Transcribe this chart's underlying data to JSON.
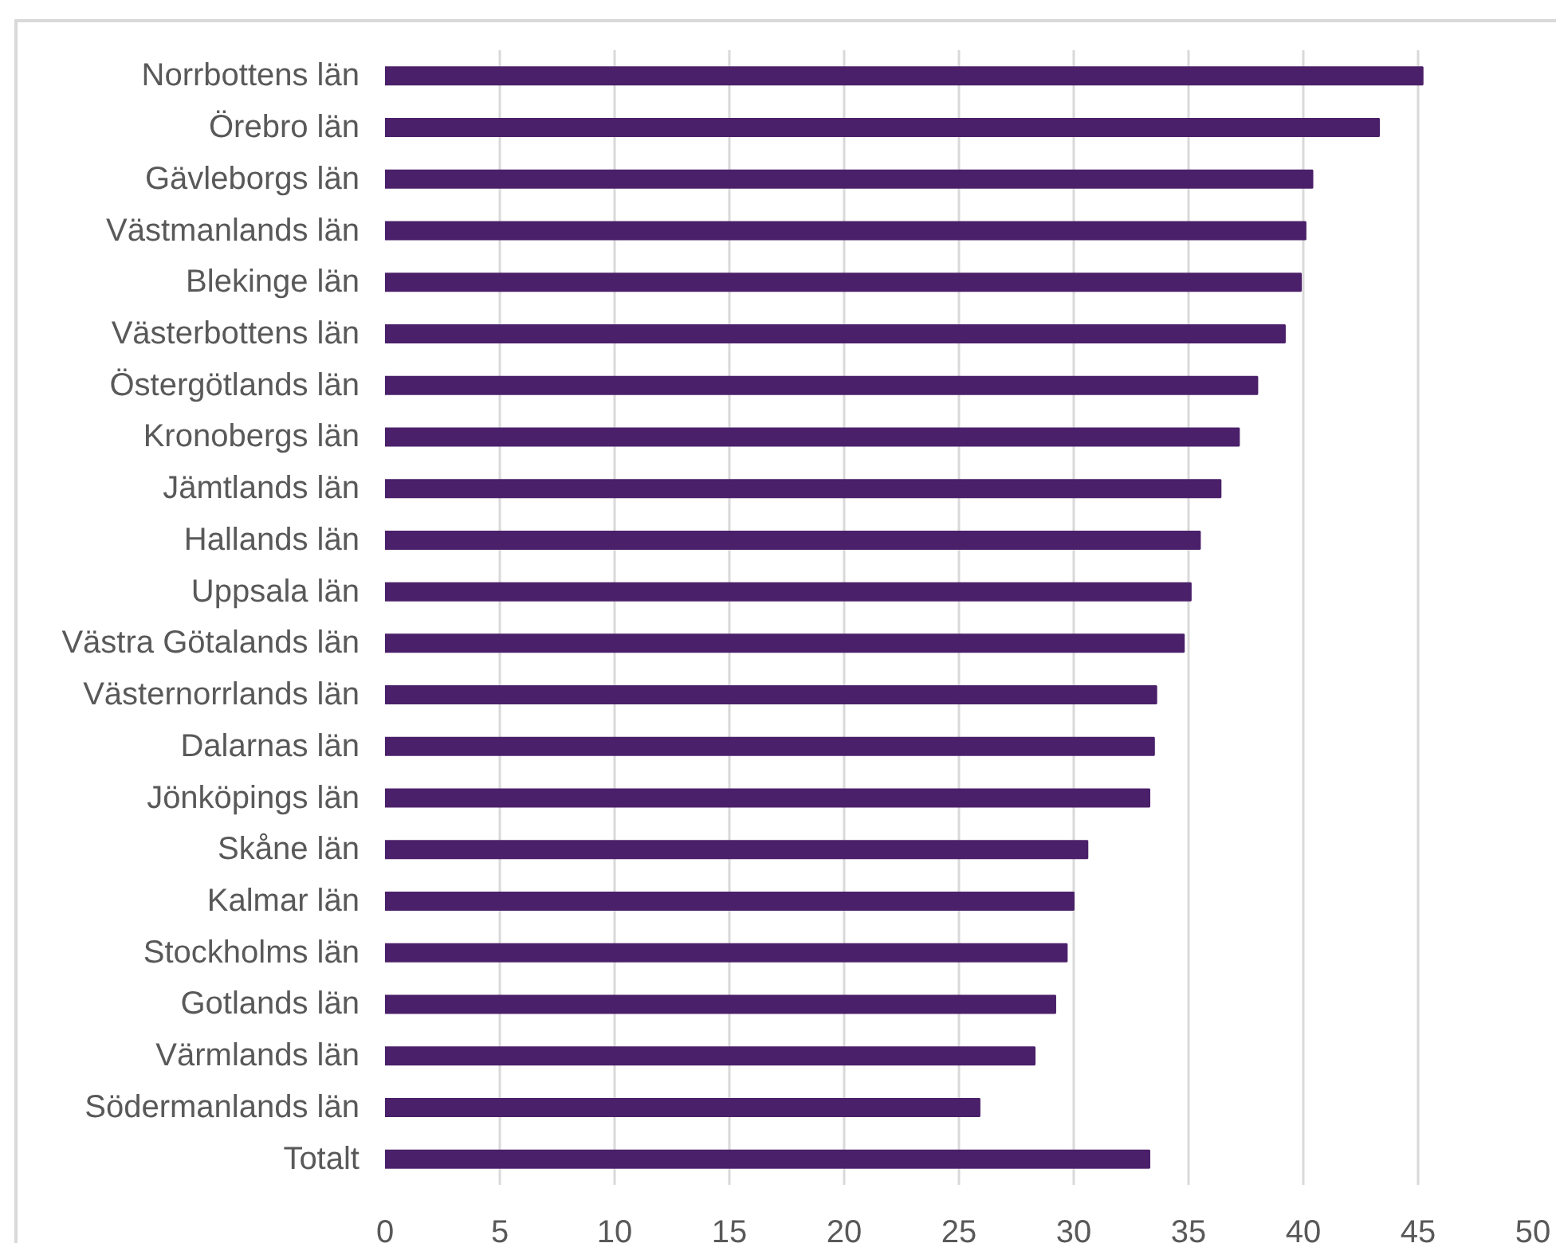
{
  "chart_data": {
    "type": "bar",
    "orientation": "horizontal",
    "categories": [
      "Norrbottens län",
      "Örebro län",
      "Gävleborgs län",
      "Västmanlands län",
      "Blekinge län",
      "Västerbottens län",
      "Östergötlands län",
      "Kronobergs län",
      "Jämtlands län",
      "Hallands län",
      "Uppsala län",
      "Västra Götalands län",
      "Västernorrlands län",
      "Dalarnas län",
      "Jönköpings län",
      "Skåne län",
      "Kalmar län",
      "Stockholms län",
      "Gotlands län",
      "Värmlands län",
      "Södermanlands län",
      "Totalt"
    ],
    "values": [
      45.2,
      43.3,
      40.4,
      40.1,
      39.9,
      39.2,
      38.0,
      37.2,
      36.4,
      35.5,
      35.1,
      34.8,
      33.6,
      33.5,
      33.3,
      30.6,
      30.0,
      29.7,
      29.2,
      28.3,
      25.9,
      33.3
    ],
    "color": "#4b206a",
    "xlim": [
      0,
      50
    ],
    "xticks": [
      0,
      5,
      10,
      15,
      20,
      25,
      30,
      35,
      40,
      45,
      50
    ],
    "grid": "x"
  }
}
